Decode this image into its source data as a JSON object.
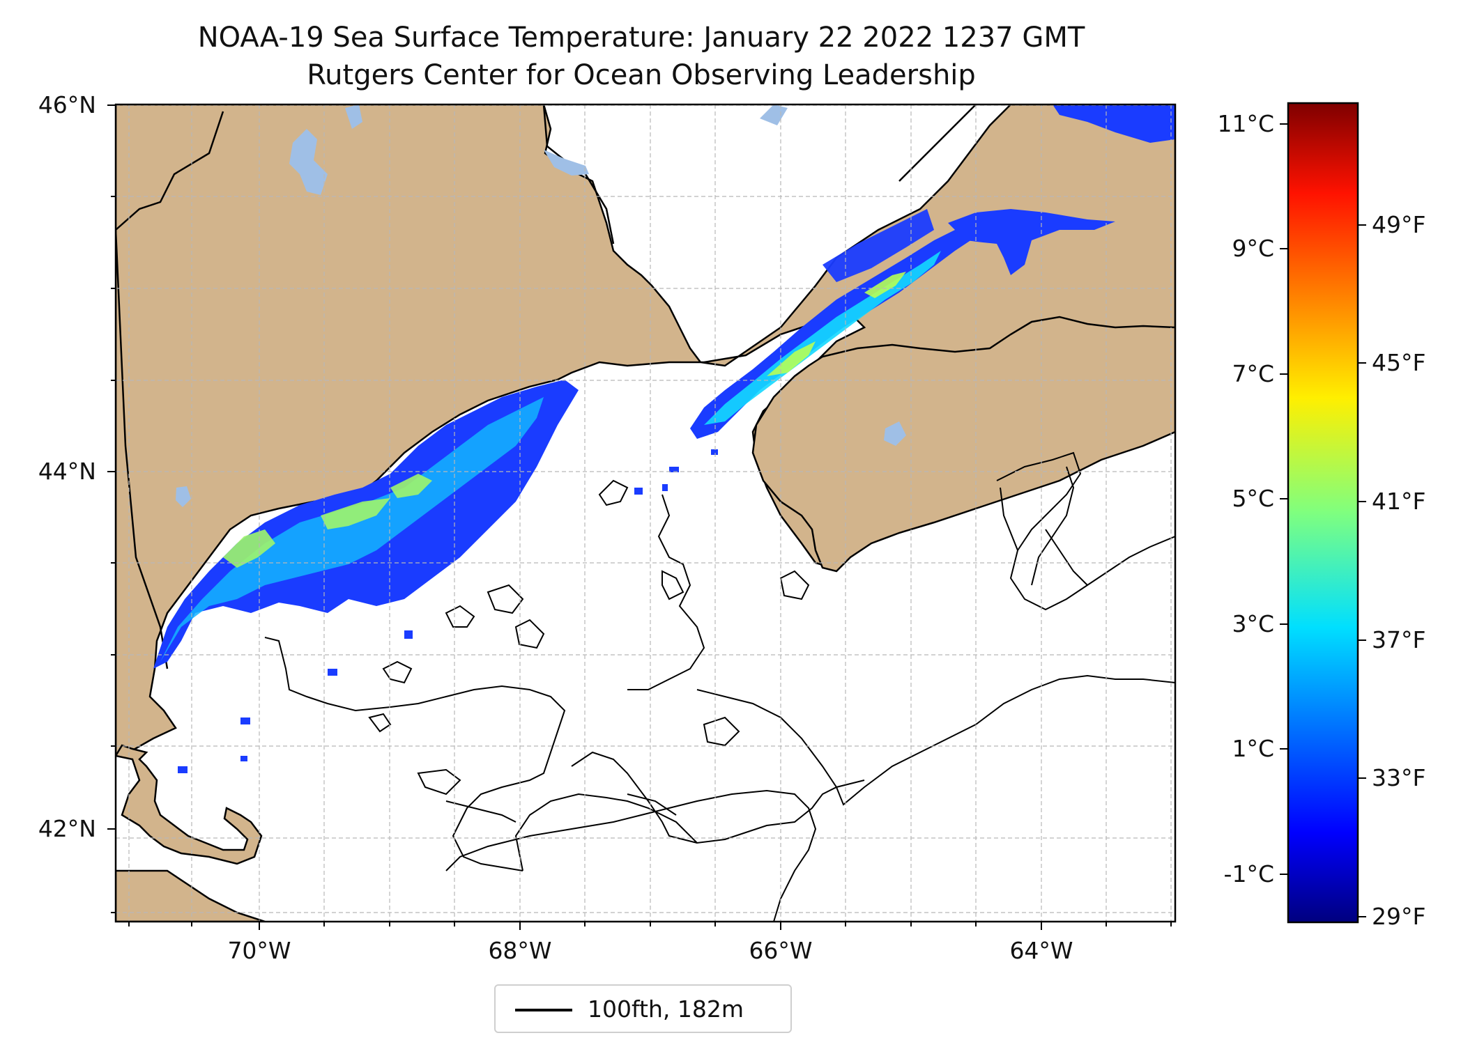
{
  "title": "NOAA-19 Sea Surface Temperature: January 22 2022 1237 GMT",
  "subtitle": "Rutgers Center for Ocean Observing Leadership",
  "lat_ticks": [
    "46°N",
    "44°N",
    "42°N"
  ],
  "lon_ticks": [
    "70°W",
    "68°W",
    "66°W",
    "64°W"
  ],
  "colorbar_celsius_ticks": [
    "11°C",
    "9°C",
    "7°C",
    "5°C",
    "3°C",
    "1°C",
    "-1°C"
  ],
  "colorbar_fahrenheit_ticks": [
    "49°F",
    "45°F",
    "41°F",
    "37°F",
    "33°F",
    "29°F"
  ],
  "colorbar_range_celsius": [
    -1.7,
    11.5
  ],
  "legend": {
    "label": "100fth, 182m"
  },
  "colors": {
    "land": "#d2b48c",
    "lakes": "#9fbfe6",
    "ocean": "#ffffff"
  }
}
